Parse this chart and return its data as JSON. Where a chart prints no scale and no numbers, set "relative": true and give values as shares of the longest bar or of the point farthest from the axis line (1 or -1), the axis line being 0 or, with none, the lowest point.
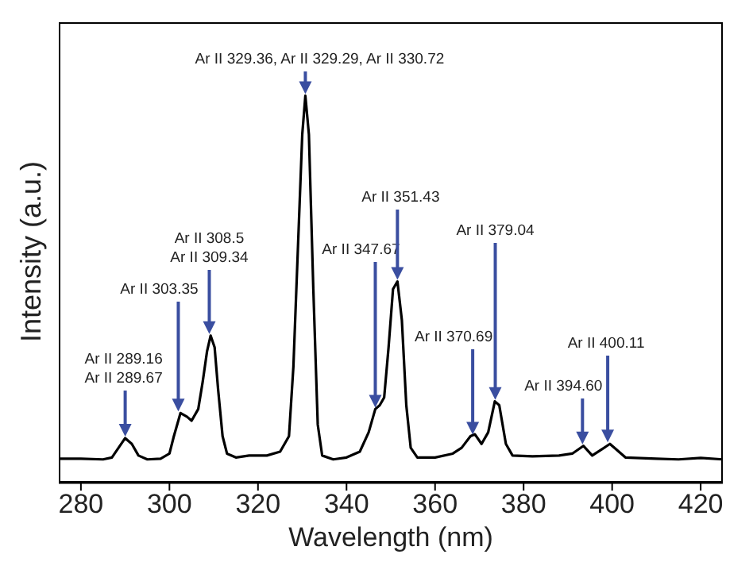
{
  "chart_data": {
    "type": "line",
    "relative": true,
    "xlabel": "Wavelength (nm)",
    "ylabel": "Intensity (a.u.)",
    "xlim": [
      275,
      425
    ],
    "xticks": [
      280,
      300,
      320,
      340,
      360,
      380,
      400,
      420
    ],
    "tick_labels": "x",
    "marker": "none",
    "line_style": "solid",
    "series": [
      {
        "color": "#000000",
        "x": [
          275,
          280,
          285,
          287,
          288.5,
          290,
          291.5,
          293,
          295,
          298,
          300,
          301,
          302.5,
          304,
          305,
          306.5,
          307.5,
          308.5,
          309.3,
          310.2,
          311,
          312,
          313,
          315,
          318,
          322,
          325,
          327,
          328,
          329,
          330,
          330.7,
          331.5,
          332.5,
          333.5,
          334.5,
          337,
          340,
          343,
          345,
          346.5,
          347.5,
          348.5,
          349.5,
          350.5,
          351.5,
          352.5,
          353.5,
          354.5,
          356,
          360,
          364,
          366,
          368,
          369,
          370.5,
          372,
          373.5,
          374.5,
          376,
          377.5,
          382,
          388,
          391,
          393.5,
          395.5,
          397.5,
          399.5,
          401,
          403,
          410,
          415,
          420,
          425
        ],
        "values": [
          0.062,
          0.062,
          0.06,
          0.065,
          0.09,
          0.115,
          0.1,
          0.07,
          0.06,
          0.062,
          0.075,
          0.12,
          0.18,
          0.17,
          0.16,
          0.19,
          0.26,
          0.34,
          0.38,
          0.35,
          0.24,
          0.12,
          0.075,
          0.065,
          0.07,
          0.07,
          0.08,
          0.12,
          0.3,
          0.6,
          0.9,
          1.0,
          0.9,
          0.5,
          0.15,
          0.07,
          0.06,
          0.065,
          0.08,
          0.13,
          0.19,
          0.2,
          0.22,
          0.35,
          0.5,
          0.52,
          0.42,
          0.2,
          0.09,
          0.065,
          0.065,
          0.075,
          0.09,
          0.12,
          0.125,
          0.1,
          0.13,
          0.21,
          0.2,
          0.1,
          0.07,
          0.068,
          0.07,
          0.075,
          0.095,
          0.07,
          0.085,
          0.1,
          0.085,
          0.065,
          0.062,
          0.06,
          0.064,
          0.06
        ]
      }
    ],
    "annotations": [
      {
        "text": "Ar II 289.16\nAr II 289.67",
        "x": 290,
        "y": 0.115
      },
      {
        "text": "Ar II 303.35",
        "x": 302,
        "y": 0.18
      },
      {
        "text": "Ar II 308.5\nAr II 309.34",
        "x": 309,
        "y": 0.38
      },
      {
        "text": "Ar II 329.36, Ar II 329.29, Ar II 330.72",
        "x": 330.7,
        "y": 1.0
      },
      {
        "text": "Ar II 347.67",
        "x": 346.5,
        "y": 0.19
      },
      {
        "text": "Ar II 351.43",
        "x": 351.5,
        "y": 0.52
      },
      {
        "text": "Ar II 370.69",
        "x": 368.5,
        "y": 0.12
      },
      {
        "text": "Ar II 379.04",
        "x": 373.6,
        "y": 0.21
      },
      {
        "text": "Ar II 394.60",
        "x": 393.3,
        "y": 0.095
      },
      {
        "text": "Ar II 400.11",
        "x": 399,
        "y": 0.1
      }
    ]
  }
}
